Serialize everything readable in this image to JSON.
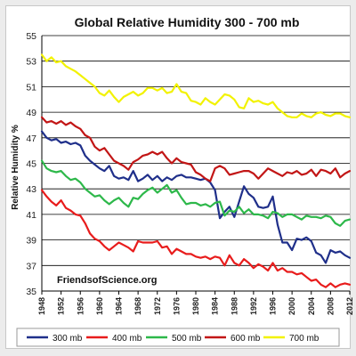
{
  "chart_data": {
    "type": "line",
    "title": "Global Relative Humidity 300 - 700 mb",
    "xlabel": "",
    "ylabel": "Relative Humidity %",
    "watermark": "FriendsofScience.org",
    "xlim": [
      1948,
      2012
    ],
    "ylim": [
      35,
      55
    ],
    "y_ticks": [
      35,
      37,
      39,
      41,
      43,
      45,
      47,
      49,
      51,
      53,
      55
    ],
    "x_ticks": [
      1948,
      1952,
      1956,
      1960,
      1964,
      1968,
      1972,
      1976,
      1980,
      1984,
      1988,
      1992,
      1996,
      2000,
      2004,
      2008,
      2012
    ],
    "grid": true,
    "legend_position": "bottom",
    "series": [
      {
        "name": "300 mb",
        "color": "#1f2f8a",
        "x": [
          1948,
          1949,
          1950,
          1951,
          1952,
          1953,
          1954,
          1955,
          1956,
          1957,
          1958,
          1959,
          1960,
          1961,
          1962,
          1963,
          1964,
          1965,
          1966,
          1967,
          1968,
          1969,
          1970,
          1971,
          1972,
          1973,
          1974,
          1975,
          1976,
          1977,
          1978,
          1979,
          1980,
          1981,
          1982,
          1983,
          1984,
          1985,
          1986,
          1987,
          1988,
          1989,
          1990,
          1991,
          1992,
          1993,
          1994,
          1995,
          1996,
          1997,
          1998,
          1999,
          2000,
          2001,
          2002,
          2003,
          2004,
          2005,
          2006,
          2007,
          2008,
          2009,
          2010,
          2011,
          2012
        ],
        "y": [
          47.5,
          47.0,
          46.8,
          46.9,
          46.6,
          46.7,
          46.5,
          46.6,
          46.4,
          45.6,
          45.2,
          44.9,
          44.6,
          44.4,
          44.8,
          44.0,
          43.8,
          43.9,
          43.7,
          44.4,
          43.6,
          43.8,
          44.1,
          43.7,
          44.0,
          43.6,
          43.9,
          43.7,
          44.0,
          44.1,
          43.9,
          43.9,
          43.8,
          43.7,
          43.8,
          43.5,
          42.9,
          40.7,
          41.2,
          41.6,
          40.8,
          42.0,
          43.2,
          42.6,
          42.3,
          41.6,
          41.5,
          41.6,
          42.4,
          40.2,
          38.8,
          38.8,
          38.2,
          39.1,
          39.0,
          39.2,
          38.9,
          38.0,
          37.8,
          37.2,
          38.2,
          38.0,
          38.1,
          37.8,
          37.6
        ]
      },
      {
        "name": "400 mb",
        "color": "#e81c1c",
        "x": [
          1948,
          1949,
          1950,
          1951,
          1952,
          1953,
          1954,
          1955,
          1956,
          1957,
          1958,
          1959,
          1960,
          1961,
          1962,
          1963,
          1964,
          1965,
          1966,
          1967,
          1968,
          1969,
          1970,
          1971,
          1972,
          1973,
          1974,
          1975,
          1976,
          1977,
          1978,
          1979,
          1980,
          1981,
          1982,
          1983,
          1984,
          1985,
          1986,
          1987,
          1988,
          1989,
          1990,
          1991,
          1992,
          1993,
          1994,
          1995,
          1996,
          1997,
          1998,
          1999,
          2000,
          2001,
          2002,
          2003,
          2004,
          2005,
          2006,
          2007,
          2008,
          2009,
          2010,
          2011,
          2012
        ],
        "y": [
          42.9,
          42.4,
          42.0,
          41.7,
          42.1,
          41.5,
          41.3,
          41.0,
          40.9,
          40.3,
          39.5,
          39.1,
          38.9,
          38.5,
          38.2,
          38.5,
          38.8,
          38.6,
          38.4,
          38.1,
          38.9,
          38.8,
          38.8,
          38.8,
          38.9,
          38.4,
          38.5,
          37.9,
          38.3,
          38.1,
          37.9,
          37.9,
          37.7,
          37.6,
          37.7,
          37.5,
          37.7,
          37.6,
          37.0,
          37.8,
          37.2,
          37.0,
          37.5,
          37.2,
          36.8,
          37.1,
          36.9,
          36.6,
          37.2,
          36.6,
          36.8,
          36.5,
          36.5,
          36.3,
          36.4,
          36.1,
          35.8,
          35.9,
          35.5,
          35.3,
          35.6,
          35.3,
          35.5,
          35.6,
          35.5
        ]
      },
      {
        "name": "500 mb",
        "color": "#2db84a",
        "x": [
          1948,
          1949,
          1950,
          1951,
          1952,
          1953,
          1954,
          1955,
          1956,
          1957,
          1958,
          1959,
          1960,
          1961,
          1962,
          1963,
          1964,
          1965,
          1966,
          1967,
          1968,
          1969,
          1970,
          1971,
          1972,
          1973,
          1974,
          1975,
          1976,
          1977,
          1978,
          1979,
          1980,
          1981,
          1982,
          1983,
          1984,
          1985,
          1986,
          1987,
          1988,
          1989,
          1990,
          1991,
          1992,
          1993,
          1994,
          1995,
          1996,
          1997,
          1998,
          1999,
          2000,
          2001,
          2002,
          2003,
          2004,
          2005,
          2006,
          2007,
          2008,
          2009,
          2010,
          2011,
          2012
        ],
        "y": [
          45.2,
          44.6,
          44.4,
          44.3,
          44.4,
          44.0,
          43.7,
          43.8,
          43.5,
          43.0,
          42.7,
          42.4,
          42.5,
          42.1,
          41.8,
          42.1,
          42.3,
          41.9,
          41.6,
          42.3,
          42.2,
          42.6,
          42.9,
          43.1,
          42.7,
          43.0,
          43.3,
          42.7,
          42.9,
          42.3,
          41.8,
          41.9,
          41.9,
          41.7,
          41.8,
          41.6,
          41.9,
          42.0,
          40.9,
          41.3,
          41.2,
          41.6,
          41.1,
          41.4,
          41.0,
          41.0,
          40.9,
          40.7,
          41.2,
          41.1,
          40.8,
          41.0,
          41.0,
          40.8,
          40.6,
          40.9,
          40.8,
          40.8,
          40.7,
          40.9,
          40.8,
          40.3,
          40.1,
          40.5,
          40.6
        ]
      },
      {
        "name": "600 mb",
        "color": "#c21616",
        "x": [
          1948,
          1949,
          1950,
          1951,
          1952,
          1953,
          1954,
          1955,
          1956,
          1957,
          1958,
          1959,
          1960,
          1961,
          1962,
          1963,
          1964,
          1965,
          1966,
          1967,
          1968,
          1969,
          1970,
          1971,
          1972,
          1973,
          1974,
          1975,
          1976,
          1977,
          1978,
          1979,
          1980,
          1981,
          1982,
          1983,
          1984,
          1985,
          1986,
          1987,
          1988,
          1989,
          1990,
          1991,
          1992,
          1993,
          1994,
          1995,
          1996,
          1997,
          1998,
          1999,
          2000,
          2001,
          2002,
          2003,
          2004,
          2005,
          2006,
          2007,
          2008,
          2009,
          2010,
          2011,
          2012
        ],
        "y": [
          48.6,
          48.2,
          48.3,
          48.1,
          48.3,
          48.0,
          48.2,
          47.9,
          47.7,
          47.2,
          47.0,
          46.3,
          46.0,
          46.2,
          45.7,
          45.2,
          45.0,
          44.8,
          44.5,
          45.1,
          45.3,
          45.6,
          45.7,
          45.9,
          45.7,
          45.9,
          45.4,
          45.0,
          45.4,
          45.1,
          45.0,
          44.9,
          44.3,
          44.1,
          43.8,
          43.6,
          44.6,
          44.8,
          44.6,
          44.1,
          44.2,
          44.3,
          44.4,
          44.4,
          44.2,
          43.8,
          44.2,
          44.6,
          44.4,
          44.2,
          44.0,
          44.3,
          44.2,
          44.4,
          44.1,
          44.2,
          44.5,
          44.0,
          44.5,
          44.4,
          44.2,
          44.6,
          43.9,
          44.2,
          44.4
        ]
      },
      {
        "name": "700 mb",
        "color": "#f2f200",
        "x": [
          1948,
          1949,
          1950,
          1951,
          1952,
          1953,
          1954,
          1955,
          1956,
          1957,
          1958,
          1959,
          1960,
          1961,
          1962,
          1963,
          1964,
          1965,
          1966,
          1967,
          1968,
          1969,
          1970,
          1971,
          1972,
          1973,
          1974,
          1975,
          1976,
          1977,
          1978,
          1979,
          1980,
          1981,
          1982,
          1983,
          1984,
          1985,
          1986,
          1987,
          1988,
          1989,
          1990,
          1991,
          1992,
          1993,
          1994,
          1995,
          1996,
          1997,
          1998,
          1999,
          2000,
          2001,
          2002,
          2003,
          2004,
          2005,
          2006,
          2007,
          2008,
          2009,
          2010,
          2011,
          2012
        ],
        "y": [
          53.5,
          53.0,
          53.3,
          52.9,
          53.0,
          52.6,
          52.4,
          52.2,
          51.9,
          51.6,
          51.3,
          51.0,
          50.5,
          50.3,
          50.7,
          50.2,
          49.8,
          50.2,
          50.4,
          50.6,
          50.3,
          50.5,
          50.9,
          50.9,
          50.7,
          50.9,
          50.5,
          50.6,
          51.2,
          50.6,
          50.5,
          49.9,
          49.8,
          49.6,
          50.1,
          49.8,
          49.6,
          50.0,
          50.4,
          50.3,
          50.0,
          49.4,
          49.3,
          50.1,
          49.8,
          49.9,
          49.7,
          49.6,
          49.8,
          49.3,
          49.0,
          48.7,
          48.6,
          48.6,
          48.9,
          48.7,
          48.6,
          48.9,
          49.0,
          48.8,
          48.7,
          48.9,
          48.9,
          48.7,
          48.6
        ]
      }
    ]
  }
}
